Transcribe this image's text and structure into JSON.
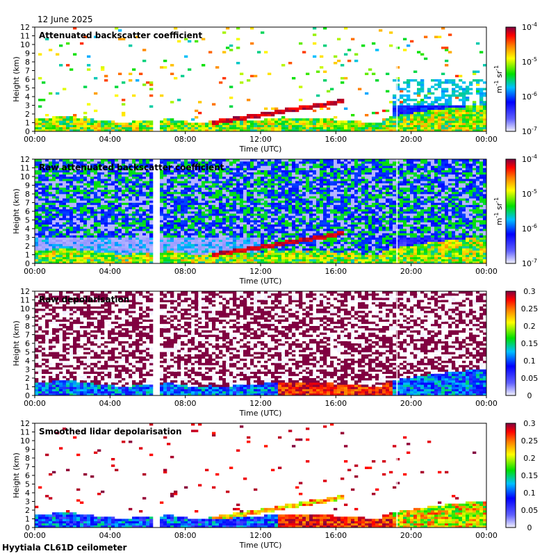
{
  "header": {
    "date": "12 June 2025"
  },
  "footer": {
    "site_label": "Hyytiala CL61D ceilometer"
  },
  "chart_data": [
    {
      "type": "heatmap",
      "title": "Attenuated backscatter coefficient",
      "xlabel": "Time (UTC)",
      "ylabel": "Height (km)",
      "x_ticks": [
        "00:00",
        "04:00",
        "08:00",
        "12:00",
        "16:00",
        "20:00",
        "00:00"
      ],
      "xlim_hours": [
        0,
        24
      ],
      "y_ticks": [
        0,
        1,
        2,
        3,
        4,
        5,
        6,
        7,
        8,
        9,
        10,
        11,
        12
      ],
      "ylim_km": [
        0,
        12
      ],
      "colorbar": {
        "scale": "log",
        "ticks": [
          "10-7",
          "10-6",
          "10-5",
          "10-4"
        ],
        "unit_base": "m",
        "unit_exp1": "-1",
        "unit_mid": " sr",
        "unit_exp2": "-1"
      },
      "data_gap_hours": [
        6.3,
        6.7
      ],
      "boundary_layer_top_km": 1.6,
      "cloud_layer_km": {
        "start_hours": 9.5,
        "end_hours": 16.5,
        "from_km": 1.0,
        "to_km": 3.5
      }
    },
    {
      "type": "heatmap",
      "title": "Raw attenuated backscatter coefficient",
      "xlabel": "Time (UTC)",
      "ylabel": "Height (km)",
      "x_ticks": [
        "00:00",
        "04:00",
        "08:00",
        "12:00",
        "16:00",
        "20:00",
        "00:00"
      ],
      "xlim_hours": [
        0,
        24
      ],
      "y_ticks": [
        0,
        1,
        2,
        3,
        4,
        5,
        6,
        7,
        8,
        9,
        10,
        11,
        12
      ],
      "ylim_km": [
        0,
        12
      ],
      "colorbar": {
        "scale": "log",
        "ticks": [
          "10-7",
          "10-6",
          "10-5",
          "10-4"
        ],
        "unit_base": "m",
        "unit_exp1": "-1",
        "unit_mid": " sr",
        "unit_exp2": "-1"
      },
      "data_gap_hours": [
        6.3,
        6.7
      ]
    },
    {
      "type": "heatmap",
      "title": "Raw depolarisation",
      "xlabel": "Time (UTC)",
      "ylabel": "Height (km)",
      "x_ticks": [
        "00:00",
        "04:00",
        "08:00",
        "12:00",
        "16:00",
        "20:00",
        "00:00"
      ],
      "xlim_hours": [
        0,
        24
      ],
      "y_ticks": [
        0,
        1,
        2,
        3,
        4,
        5,
        6,
        7,
        8,
        9,
        10,
        11,
        12
      ],
      "ylim_km": [
        0,
        12
      ],
      "colorbar": {
        "scale": "linear",
        "ticks": [
          "0",
          "0.05",
          "0.1",
          "0.15",
          "0.2",
          "0.25",
          "0.3"
        ]
      },
      "data_gap_hours": [
        6.3,
        6.7
      ]
    },
    {
      "type": "heatmap",
      "title": "Smoothed lidar depolarisation",
      "xlabel": "Time (UTC)",
      "ylabel": "Height (km)",
      "x_ticks": [
        "00:00",
        "04:00",
        "08:00",
        "12:00",
        "16:00",
        "20:00",
        "00:00"
      ],
      "xlim_hours": [
        0,
        24
      ],
      "y_ticks": [
        0,
        1,
        2,
        3,
        4,
        5,
        6,
        7,
        8,
        9,
        10,
        11,
        12
      ],
      "ylim_km": [
        0,
        12
      ],
      "colorbar": {
        "scale": "linear",
        "ticks": [
          "0",
          "0.05",
          "0.1",
          "0.15",
          "0.2",
          "0.25",
          "0.3"
        ]
      },
      "data_gap_hours": [
        6.3,
        6.7
      ]
    }
  ]
}
